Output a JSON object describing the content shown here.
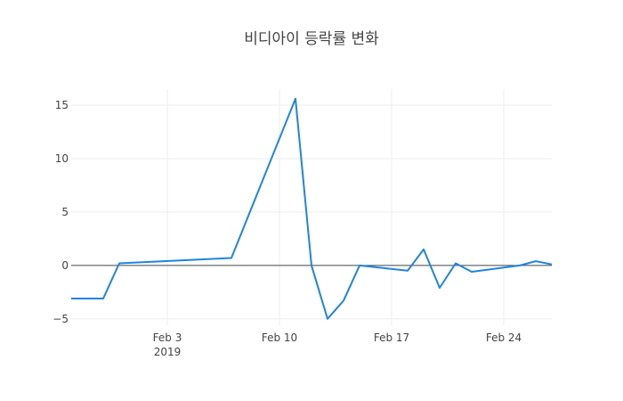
{
  "chart_data": {
    "type": "line",
    "title": "비디아이 등락률 변화",
    "xlabel": "",
    "ylabel": "",
    "x_ticks": [
      {
        "date": "2019-02-03",
        "label": "Feb 3",
        "sublabel": "2019"
      },
      {
        "date": "2019-02-10",
        "label": "Feb 10",
        "sublabel": ""
      },
      {
        "date": "2019-02-17",
        "label": "Feb 17",
        "sublabel": ""
      },
      {
        "date": "2019-02-24",
        "label": "Feb 24",
        "sublabel": ""
      }
    ],
    "y_ticks": [
      -5,
      0,
      5,
      10,
      15
    ],
    "y_tick_labels": [
      "−5",
      "0",
      "5",
      "10",
      "15"
    ],
    "xlim": [
      "2019-01-28",
      "2019-02-27"
    ],
    "ylim": [
      -5.6,
      16.5
    ],
    "grid": true,
    "series": [
      {
        "color": "#1f85de",
        "x": [
          "2019-01-28",
          "2019-01-30",
          "2019-01-31",
          "2019-02-07",
          "2019-02-11",
          "2019-02-12",
          "2019-02-13",
          "2019-02-14",
          "2019-02-15",
          "2019-02-18",
          "2019-02-19",
          "2019-02-20",
          "2019-02-21",
          "2019-02-22",
          "2019-02-25",
          "2019-02-26",
          "2019-02-27"
        ],
        "y": [
          -3.1,
          -3.1,
          0.2,
          0.7,
          15.6,
          0.0,
          -5.0,
          -3.3,
          0.0,
          -0.5,
          1.5,
          -2.1,
          0.2,
          -0.6,
          0.0,
          0.4,
          0.1
        ]
      }
    ]
  }
}
